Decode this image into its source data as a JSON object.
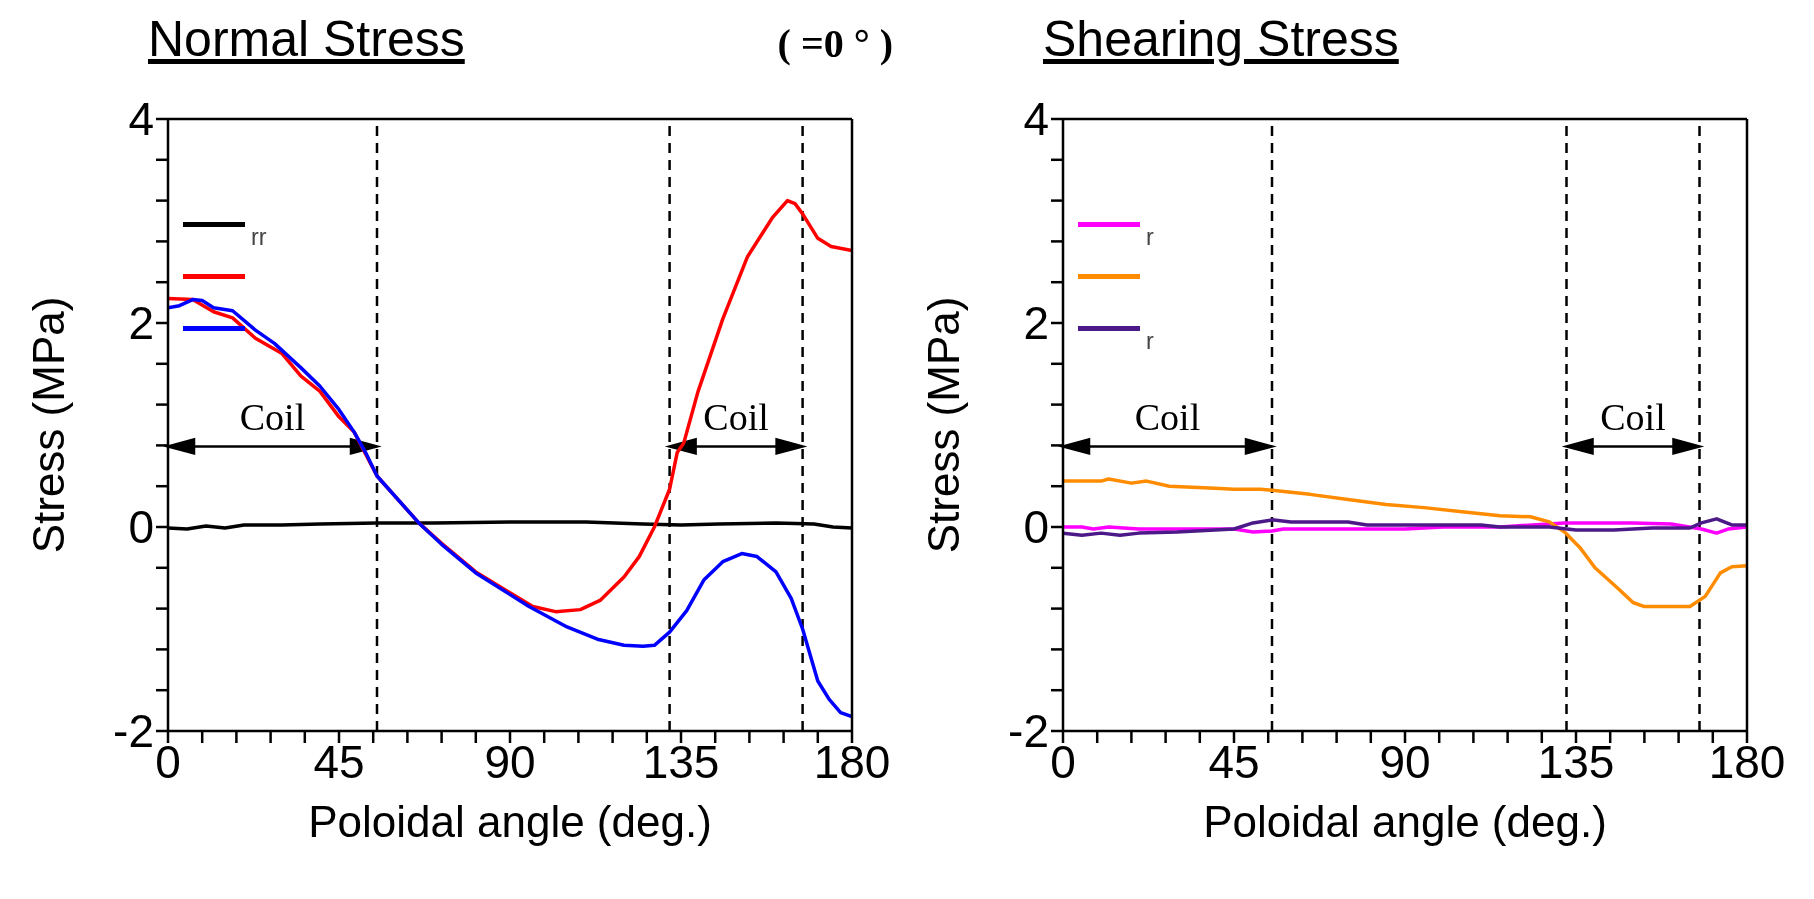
{
  "chart_data": [
    {
      "type": "line",
      "title": "Normal Stress",
      "xlabel": "Poloidal angle (deg.)",
      "ylabel": "Stress  (MPa)",
      "annotations": [
        "( =0 ° )",
        "Coil",
        "Coil"
      ],
      "legend": "top left",
      "line_style": "solid",
      "xlim": [
        0,
        180
      ],
      "xticks": [
        0,
        {
          "value": 9,
          "label": null
        },
        {
          "value": 18,
          "label": null
        },
        {
          "value": 27,
          "label": null
        },
        {
          "value": 36,
          "label": null
        },
        45,
        {
          "value": 54,
          "label": null
        },
        {
          "value": 63,
          "label": null
        },
        {
          "value": 72,
          "label": null
        },
        {
          "value": 81,
          "label": null
        },
        90,
        {
          "value": 99,
          "label": null
        },
        {
          "value": 108,
          "label": null
        },
        {
          "value": 117,
          "label": null
        },
        {
          "value": 126,
          "label": null
        },
        135,
        {
          "value": 144,
          "label": null
        },
        {
          "value": 153,
          "label": null
        },
        {
          "value": 162,
          "label": null
        },
        {
          "value": 171,
          "label": null
        },
        180
      ],
      "ylim": [
        -2,
        4
      ],
      "yticks": [
        -2,
        {
          "value": -1.6,
          "label": null
        },
        {
          "value": -1.2,
          "label": null
        },
        {
          "value": -0.8,
          "label": null
        },
        {
          "value": -0.4,
          "label": null
        },
        0,
        {
          "value": 0.4,
          "label": null
        },
        {
          "value": 0.8,
          "label": null
        },
        {
          "value": 1.2,
          "label": null
        },
        {
          "value": 1.6,
          "label": null
        },
        2,
        {
          "value": 2.4,
          "label": null
        },
        {
          "value": 2.8,
          "label": null
        },
        {
          "value": 3.2,
          "label": null
        },
        {
          "value": 3.6,
          "label": null
        },
        4
      ],
      "ref_lines": [
        {
          "axis": "x",
          "value": 55,
          "color": "#000000",
          "line_style": "dashed"
        },
        {
          "axis": "x",
          "value": 132,
          "color": "#000000",
          "line_style": "dashed"
        },
        {
          "axis": "x",
          "value": 167,
          "color": "#000000",
          "line_style": "dashed"
        }
      ],
      "series": [
        {
          "name": "$_{rr}$",
          "color": "#000000",
          "x": [
            0,
            5,
            10,
            15,
            20,
            30,
            40,
            55,
            70,
            90,
            110,
            125,
            135,
            145,
            160,
            170,
            175,
            180
          ],
          "values": [
            -0.01,
            -0.02,
            0.01,
            -0.01,
            0.02,
            0.02,
            0.03,
            0.04,
            0.04,
            0.05,
            0.05,
            0.03,
            0.02,
            0.03,
            0.04,
            0.03,
            0,
            -0.01
          ]
        },
        {
          "color": "#ff0000",
          "x": [
            0,
            6.5,
            12,
            17,
            23,
            30,
            35,
            40,
            45,
            49,
            55,
            66,
            72,
            81,
            96,
            102,
            108.5,
            113.7,
            120,
            124,
            128,
            132,
            134,
            135.7,
            139.5,
            146,
            152.5,
            159,
            163,
            165,
            167,
            171,
            174.5,
            180
          ],
          "values": [
            2.24,
            2.23,
            2.11,
            2.05,
            1.85,
            1.7,
            1.48,
            1.33,
            1.08,
            0.93,
            0.5,
            0.04,
            -0.16,
            -0.44,
            -0.78,
            -0.83,
            -0.81,
            -0.72,
            -0.49,
            -0.29,
            0,
            0.37,
            0.73,
            0.82,
            1.33,
            2.04,
            2.65,
            3.03,
            3.2,
            3.17,
            3.07,
            2.83,
            2.75,
            2.71
          ]
        },
        {
          "color": "#0000ff",
          "x": [
            0,
            3,
            6.5,
            9,
            12,
            17,
            23,
            28,
            35,
            40,
            45,
            49,
            52,
            55,
            66,
            72,
            81,
            95,
            105,
            113,
            120,
            125,
            128,
            132,
            136.5,
            141,
            146,
            151,
            155,
            160,
            164,
            167,
            171,
            174,
            177,
            180
          ],
          "values": [
            2.15,
            2.17,
            2.23,
            2.22,
            2.15,
            2.12,
            1.93,
            1.8,
            1.56,
            1.38,
            1.15,
            0.93,
            0.73,
            0.5,
            0.04,
            -0.17,
            -0.45,
            -0.78,
            -0.98,
            -1.1,
            -1.16,
            -1.17,
            -1.16,
            -1.03,
            -0.82,
            -0.52,
            -0.34,
            -0.26,
            -0.29,
            -0.44,
            -0.7,
            -1,
            -1.51,
            -1.69,
            -1.82,
            -1.86
          ]
        }
      ]
    },
    {
      "type": "line",
      "title": "Shearing Stress",
      "xlabel": "Poloidal angle (deg.)",
      "ylabel": "Stress  (MPa)",
      "legend": "top left",
      "line_style": "solid",
      "xlim": [
        0,
        180
      ],
      "xticks": [
        0,
        {
          "value": 9,
          "label": null
        },
        {
          "value": 18,
          "label": null
        },
        {
          "value": 27,
          "label": null
        },
        {
          "value": 36,
          "label": null
        },
        45,
        {
          "value": 54,
          "label": null
        },
        {
          "value": 63,
          "label": null
        },
        {
          "value": 72,
          "label": null
        },
        {
          "value": 81,
          "label": null
        },
        90,
        {
          "value": 99,
          "label": null
        },
        {
          "value": 108,
          "label": null
        },
        {
          "value": 117,
          "label": null
        },
        {
          "value": 126,
          "label": null
        },
        135,
        {
          "value": 144,
          "label": null
        },
        {
          "value": 153,
          "label": null
        },
        {
          "value": 162,
          "label": null
        },
        {
          "value": 171,
          "label": null
        },
        180
      ],
      "ylim": [
        -2,
        4
      ],
      "yticks": [
        -2,
        {
          "value": -1.6,
          "label": null
        },
        {
          "value": -1.2,
          "label": null
        },
        {
          "value": -0.8,
          "label": null
        },
        {
          "value": -0.4,
          "label": null
        },
        0,
        {
          "value": 0.4,
          "label": null
        },
        {
          "value": 0.8,
          "label": null
        },
        {
          "value": 1.2,
          "label": null
        },
        {
          "value": 1.6,
          "label": null
        },
        2,
        {
          "value": 2.4,
          "label": null
        },
        {
          "value": 2.8,
          "label": null
        },
        {
          "value": 3.2,
          "label": null
        },
        {
          "value": 3.6,
          "label": null
        },
        4
      ],
      "ref_lines": [
        {
          "axis": "x",
          "value": 55,
          "color": "#000000",
          "line_style": "dashed"
        },
        {
          "axis": "x",
          "value": 132.5,
          "color": "#000000",
          "line_style": "dashed"
        },
        {
          "axis": "x",
          "value": 167.5,
          "color": "#000000",
          "line_style": "dashed"
        }
      ],
      "annotations": [
        "Coil",
        "Coil"
      ],
      "series": [
        {
          "name": "$_{r}$",
          "color": "#ff00ff",
          "x": [
            0,
            5,
            8,
            12,
            20,
            45,
            50,
            55,
            58,
            90,
            100,
            115,
            132,
            150,
            160,
            168,
            172,
            175,
            180
          ],
          "values": [
            0,
            0,
            -0.02,
            0,
            -0.02,
            -0.02,
            -0.05,
            -0.04,
            -0.02,
            -0.02,
            0,
            0,
            0.04,
            0.04,
            0.03,
            -0.02,
            -0.06,
            -0.02,
            0
          ]
        },
        {
          "color": "#ff8c00",
          "x": [
            0,
            10,
            12,
            18,
            22,
            28,
            40,
            45,
            52,
            55,
            65,
            75,
            85,
            95,
            105,
            115,
            123,
            128,
            132,
            136,
            140,
            146,
            150,
            153,
            165,
            169,
            173,
            176,
            180
          ],
          "values": [
            0.45,
            0.45,
            0.47,
            0.43,
            0.45,
            0.4,
            0.38,
            0.37,
            0.37,
            0.36,
            0.32,
            0.27,
            0.22,
            0.19,
            0.15,
            0.11,
            0.1,
            0.05,
            -0.05,
            -0.2,
            -0.4,
            -0.6,
            -0.74,
            -0.78,
            -0.78,
            -0.68,
            -0.45,
            -0.39,
            -0.38
          ]
        },
        {
          "name": "$_{r}$",
          "color": "#4b1a88",
          "x": [
            0,
            5,
            10,
            15,
            20,
            30,
            40,
            45,
            50,
            55,
            60,
            75,
            80,
            110,
            115,
            128,
            135,
            145,
            155,
            165,
            168,
            172,
            176,
            180
          ],
          "values": [
            -0.06,
            -0.08,
            -0.06,
            -0.08,
            -0.06,
            -0.05,
            -0.03,
            -0.02,
            0.04,
            0.07,
            0.05,
            0.05,
            0.02,
            0.02,
            0,
            0,
            -0.03,
            -0.03,
            -0.01,
            -0.01,
            0.04,
            0.08,
            0.02,
            0.02
          ]
        }
      ]
    }
  ]
}
